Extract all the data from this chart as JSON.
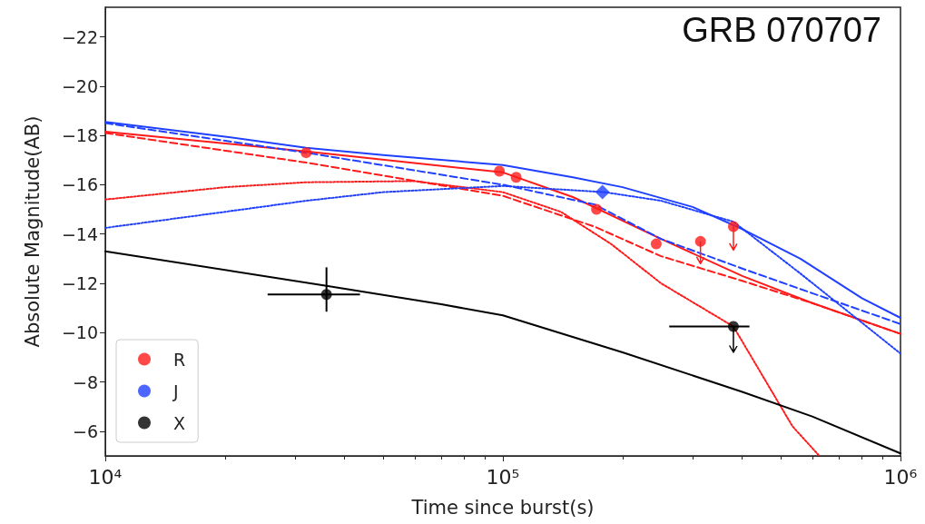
{
  "chart_data": {
    "type": "scatter",
    "xlabel": "Time since burst(s)",
    "ylabel": "Absolute Magnitude(AB)",
    "annotations": [
      "GRB 070707"
    ],
    "log": "x",
    "xlim": [
      10000,
      1000000
    ],
    "xticks": [
      {
        "value": 10000,
        "label": "10⁴"
      },
      {
        "value": 100000,
        "label": "10⁵"
      },
      {
        "value": 1000000,
        "label": "10⁶"
      }
    ],
    "ylim": [
      -5,
      -23.2
    ],
    "yticks": [
      -22,
      -20,
      -18,
      -16,
      -14,
      -12,
      -10,
      -8,
      -6
    ],
    "grid": false,
    "legend": "bottom left",
    "series": [
      {
        "name": "R",
        "color": "#ff1a1a",
        "marker": "circle",
        "x": [
          32000,
          98000,
          108000,
          172000,
          243000,
          314000,
          380000
        ],
        "values": [
          -17.3,
          -16.55,
          -16.3,
          -15.0,
          -13.6,
          -13.7,
          -14.3
        ],
        "errors": [
          null,
          null,
          null,
          null,
          null,
          [
            -13.7,
            -12.8
          ],
          [
            -14.3,
            -13.35
          ]
        ]
      },
      {
        "name": "J",
        "color": "#2040ff",
        "marker": "diamond",
        "x": [
          178000
        ],
        "values": [
          -15.7
        ]
      },
      {
        "name": "X",
        "color": "#000000",
        "marker": "circle",
        "x": [
          36000,
          380000
        ],
        "values": [
          -11.55,
          -10.25
        ],
        "errors": [
          [
            -12.65,
            -10.85
          ],
          [
            -10.25,
            -9.2
          ]
        ],
        "xerrors": [
          [
            25600,
            43700
          ],
          [
            262000,
            417000
          ]
        ]
      },
      {
        "type": "line",
        "color": "#ff1a1a",
        "line_style": "solid",
        "marker": "none",
        "x": [
          10000,
          32000,
          100000,
          150000,
          250000,
          400000,
          600000,
          1000000
        ],
        "values": [
          -18.15,
          -17.35,
          -16.5,
          -15.5,
          -13.8,
          -12.3,
          -11.2,
          -9.95
        ]
      },
      {
        "type": "line",
        "color": "#ff1a1a",
        "line_style": "dashed",
        "marker": "none",
        "x": [
          10000,
          32000,
          100000,
          170000,
          250000,
          400000,
          600000,
          1000000
        ],
        "values": [
          -18.1,
          -16.9,
          -15.55,
          -14.3,
          -13.1,
          -12.1,
          -11.2,
          -9.95
        ]
      },
      {
        "type": "line",
        "color": "#ff1a1a",
        "line_style": "dotted",
        "marker": "none",
        "x": [
          10000,
          20000,
          32000,
          60000,
          100000,
          140000,
          187000,
          250000,
          380000,
          535000,
          625000
        ],
        "values": [
          -15.4,
          -15.9,
          -16.1,
          -16.15,
          -15.7,
          -14.9,
          -13.6,
          -12.0,
          -10.25,
          -6.2,
          -5.0
        ]
      },
      {
        "type": "line",
        "color": "#2040ff",
        "line_style": "solid",
        "marker": "none",
        "x": [
          10000,
          20000,
          32000,
          50000,
          100000,
          150000,
          200000,
          300000,
          400000,
          560000,
          800000,
          1000000
        ],
        "values": [
          -18.55,
          -17.95,
          -17.5,
          -17.2,
          -16.8,
          -16.3,
          -15.9,
          -15.1,
          -14.2,
          -13.0,
          -11.4,
          -10.6
        ]
      },
      {
        "type": "line",
        "color": "#2040ff",
        "line_style": "dashed",
        "marker": "none",
        "x": [
          10000,
          32000,
          100000,
          170000,
          250000,
          400000,
          600000,
          1000000
        ],
        "values": [
          -18.5,
          -17.3,
          -16.0,
          -15.2,
          -13.8,
          -12.6,
          -11.6,
          -10.35
        ]
      },
      {
        "type": "line",
        "color": "#2040ff",
        "line_style": "dotted",
        "marker": "none",
        "x": [
          10000,
          20000,
          32000,
          50000,
          100000,
          180000,
          250000,
          380000,
          560000,
          800000,
          1000000
        ],
        "values": [
          -14.25,
          -14.9,
          -15.35,
          -15.7,
          -15.95,
          -15.7,
          -15.35,
          -14.5,
          -12.4,
          -10.4,
          -9.15
        ]
      },
      {
        "type": "line",
        "color": "#000000",
        "line_style": "solid",
        "marker": "none",
        "x": [
          10000,
          36000,
          70000,
          100000,
          200000,
          400000,
          600000,
          1000000
        ],
        "values": [
          -13.3,
          -11.9,
          -11.15,
          -10.7,
          -9.2,
          -7.6,
          -6.6,
          -5.1
        ]
      }
    ]
  }
}
